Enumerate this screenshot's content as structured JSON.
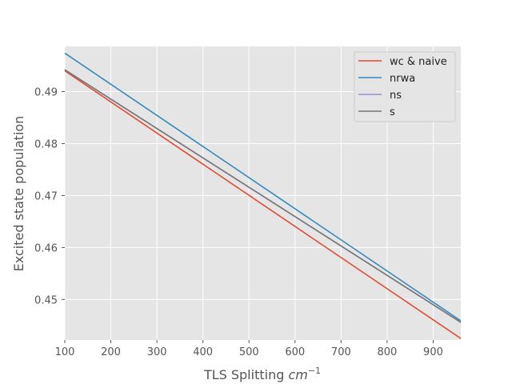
{
  "chart_data": {
    "type": "line",
    "xlabel": "TLS Splitting",
    "xlabel_unit_base": "cm",
    "xlabel_unit_exp": "−1",
    "ylabel": "Excited state population",
    "xlim": [
      100,
      960
    ],
    "ylim": [
      0.4422,
      0.4987
    ],
    "xticks": [
      100,
      200,
      300,
      400,
      500,
      600,
      700,
      800,
      900
    ],
    "yticks": [
      0.45,
      0.46,
      0.47,
      0.48,
      0.49
    ],
    "ytick_labels": [
      "0.45",
      "0.46",
      "0.47",
      "0.48",
      "0.49"
    ],
    "grid": true,
    "legend_position": "top-right",
    "series": [
      {
        "name": "wc & naive",
        "color": "#E24A33",
        "x": [
          100,
          960
        ],
        "y": [
          0.494,
          0.4425
        ]
      },
      {
        "name": "nrwa",
        "color": "#348ABD",
        "x": [
          100,
          960
        ],
        "y": [
          0.4974,
          0.4459
        ]
      },
      {
        "name": "ns",
        "color": "#988ED5",
        "x": [
          100,
          960
        ],
        "y": [
          0.4942,
          0.4456
        ]
      },
      {
        "name": "s",
        "color": "#777777",
        "x": [
          100,
          960
        ],
        "y": [
          0.4942,
          0.4456
        ]
      }
    ]
  }
}
